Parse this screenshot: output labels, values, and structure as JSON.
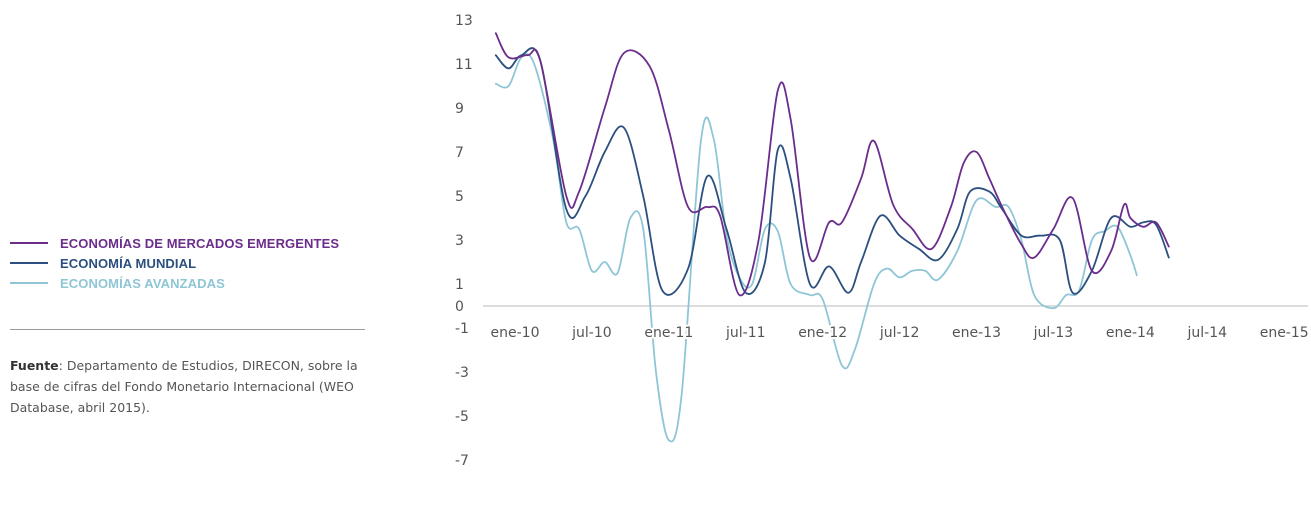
{
  "legend": {
    "emerging": "ECONOMÍAS DE MERCADOS EMERGENTES",
    "world": "ECONOMÍA MUNDIAL",
    "advanced": "ECONOMÍAS AVANZADAS"
  },
  "source": {
    "label": "Fuente",
    "text": ": Departamento de Estudios, DIRECON, sobre la base de cifras del Fondo Monetario Internacional (WEO Database, abril 2015)."
  },
  "colors": {
    "emerging": "#6b2d8c",
    "world": "#2b4f7e",
    "advanced": "#8fc6d6"
  },
  "chart_data": {
    "type": "line",
    "y_ticks": [
      "13",
      "11",
      "9",
      "7",
      "5",
      "3",
      "1",
      "0",
      "-1",
      "-3",
      "-5",
      "-7"
    ],
    "x_ticks": [
      "ene-10",
      "jul-10",
      "ene-11",
      "jul-11",
      "ene-12",
      "jul-12",
      "ene-13",
      "jul-13",
      "ene-14",
      "jul-14",
      "ene-15"
    ],
    "x_tick_months": [
      0,
      6,
      12,
      18,
      24,
      30,
      36,
      42,
      48,
      54,
      60
    ],
    "ylim": [
      -7,
      13
    ],
    "x_range_months": [
      -2,
      64
    ],
    "series": [
      {
        "key": "emerging",
        "name": "ECONOMÍAS DE MERCADOS EMERGENTES",
        "points": [
          [
            -1.5,
            12.4
          ],
          [
            -0.5,
            11.3
          ],
          [
            1,
            11.4
          ],
          [
            2,
            11.1
          ],
          [
            4,
            5.0
          ],
          [
            5,
            5.2
          ],
          [
            7,
            9.0
          ],
          [
            8.5,
            11.5
          ],
          [
            10.5,
            10.9
          ],
          [
            12,
            8.0
          ],
          [
            13.5,
            4.5
          ],
          [
            15,
            4.5
          ],
          [
            16,
            4.1
          ],
          [
            17.5,
            0.5
          ],
          [
            19,
            3.0
          ],
          [
            20.5,
            9.8
          ],
          [
            21.5,
            8.5
          ],
          [
            23,
            2.2
          ],
          [
            24.5,
            3.8
          ],
          [
            25.5,
            3.8
          ],
          [
            27,
            5.8
          ],
          [
            28,
            7.5
          ],
          [
            29.5,
            4.6
          ],
          [
            31,
            3.5
          ],
          [
            32.5,
            2.6
          ],
          [
            34,
            4.5
          ],
          [
            35,
            6.5
          ],
          [
            36,
            7.0
          ],
          [
            37,
            5.8
          ],
          [
            38,
            4.5
          ],
          [
            39.5,
            2.8
          ],
          [
            40.5,
            2.2
          ],
          [
            42,
            3.5
          ],
          [
            43.5,
            4.9
          ],
          [
            45,
            1.6
          ],
          [
            46.5,
            2.5
          ],
          [
            47.5,
            4.6
          ],
          [
            48,
            4.0
          ],
          [
            49,
            3.6
          ],
          [
            50,
            3.8
          ],
          [
            51,
            2.7
          ]
        ]
      },
      {
        "key": "world",
        "name": "ECONOMÍA MUNDIAL",
        "points": [
          [
            -1.5,
            11.4
          ],
          [
            -0.5,
            10.8
          ],
          [
            0.5,
            11.4
          ],
          [
            2,
            11.1
          ],
          [
            4,
            4.4
          ],
          [
            5.5,
            5.0
          ],
          [
            7,
            7.0
          ],
          [
            8.5,
            8.1
          ],
          [
            10,
            5.0
          ],
          [
            11.5,
            0.7
          ],
          [
            13.5,
            1.7
          ],
          [
            15,
            5.9
          ],
          [
            16.5,
            3.5
          ],
          [
            18,
            0.6
          ],
          [
            19.5,
            2.0
          ],
          [
            20.5,
            7.1
          ],
          [
            21.5,
            5.8
          ],
          [
            23,
            1.0
          ],
          [
            24.5,
            1.8
          ],
          [
            26,
            0.6
          ],
          [
            27,
            2.0
          ],
          [
            28.5,
            4.1
          ],
          [
            30,
            3.2
          ],
          [
            31.5,
            2.6
          ],
          [
            33,
            2.1
          ],
          [
            34.5,
            3.5
          ],
          [
            35.5,
            5.2
          ],
          [
            37,
            5.2
          ],
          [
            38,
            4.4
          ],
          [
            39.5,
            3.2
          ],
          [
            41,
            3.2
          ],
          [
            42.5,
            3.0
          ],
          [
            43.5,
            0.6
          ],
          [
            45,
            1.6
          ],
          [
            46.5,
            4.0
          ],
          [
            48,
            3.6
          ],
          [
            49,
            3.8
          ],
          [
            50,
            3.7
          ],
          [
            51,
            2.2
          ]
        ]
      },
      {
        "key": "advanced",
        "name": "ECONOMÍAS AVANZADAS",
        "points": [
          [
            -1.5,
            10.1
          ],
          [
            -0.5,
            10.0
          ],
          [
            0.5,
            11.3
          ],
          [
            1.5,
            11.0
          ],
          [
            3,
            7.5
          ],
          [
            4,
            3.8
          ],
          [
            5,
            3.5
          ],
          [
            6,
            1.6
          ],
          [
            7,
            2.0
          ],
          [
            8,
            1.5
          ],
          [
            9,
            4.0
          ],
          [
            10,
            3.5
          ],
          [
            11,
            -3.0
          ],
          [
            12,
            -6.1
          ],
          [
            13,
            -4.0
          ],
          [
            14.5,
            7.5
          ],
          [
            15.5,
            7.6
          ],
          [
            16.5,
            3.2
          ],
          [
            17.5,
            1.3
          ],
          [
            18.5,
            1.0
          ],
          [
            19.5,
            3.5
          ],
          [
            20.5,
            3.4
          ],
          [
            21.5,
            1.0
          ],
          [
            23,
            0.5
          ],
          [
            24,
            0.3
          ],
          [
            25.5,
            -2.7
          ],
          [
            26.5,
            -2.0
          ],
          [
            28,
            1.0
          ],
          [
            29,
            1.7
          ],
          [
            30,
            1.3
          ],
          [
            31,
            1.6
          ],
          [
            32,
            1.6
          ],
          [
            33,
            1.2
          ],
          [
            34.5,
            2.5
          ],
          [
            36,
            4.8
          ],
          [
            37.5,
            4.5
          ],
          [
            38.5,
            4.5
          ],
          [
            39.5,
            3.0
          ],
          [
            40.5,
            0.5
          ],
          [
            42,
            -0.1
          ],
          [
            43,
            0.5
          ],
          [
            44,
            0.7
          ],
          [
            45,
            3.0
          ],
          [
            46,
            3.4
          ],
          [
            47,
            3.6
          ],
          [
            48,
            2.3
          ],
          [
            48.5,
            1.4
          ]
        ]
      }
    ]
  }
}
